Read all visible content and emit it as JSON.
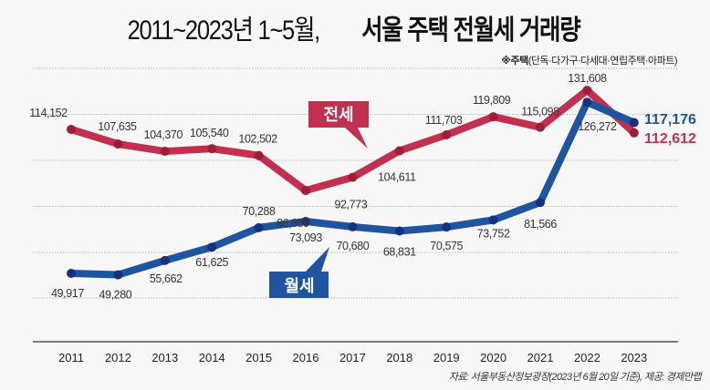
{
  "title_part1": "2011~2023년 1~5월,",
  "title_part2": "서울 주택 전월세 거래량",
  "note_prefix": "※주택",
  "note_detail": "(단독·다가구·다세대·연립주택·아파트)",
  "source": "자료: 서울부동산정보광장(2023년 6월 20일 기준), 제공: 경제만랩",
  "colors": {
    "jeonse": "#c3304f",
    "wolse": "#1f54a0",
    "jeonse_dot": "#9e1d3b",
    "wolse_dot": "#1b2f7f"
  },
  "chart_data": {
    "type": "line",
    "title": "2011~2023년 1~5월, 서울 주택 전월세 거래량",
    "xlabel": "",
    "ylabel": "",
    "x": [
      "2011",
      "2012",
      "2013",
      "2014",
      "2015",
      "2016",
      "2017",
      "2018",
      "2019",
      "2020",
      "2021",
      "2022",
      "2023"
    ],
    "series": [
      {
        "name": "전세",
        "values": [
          114152,
          107635,
          104370,
          105540,
          102502,
          86889,
          92773,
          104611,
          111703,
          119809,
          115098,
          131608,
          112612
        ],
        "labels": [
          "114,152",
          "107,635",
          "104,370",
          "105,540",
          "102,502",
          "86,889",
          "92,773",
          "104,611",
          "111,703",
          "119,809",
          "115,098",
          "131,608",
          "112,612"
        ]
      },
      {
        "name": "월세",
        "values": [
          49917,
          49280,
          55662,
          61625,
          70288,
          73093,
          70680,
          68831,
          70575,
          73752,
          81566,
          126272,
          117176
        ],
        "labels": [
          "49,917",
          "49,280",
          "55,662",
          "61,625",
          "70,288",
          "73,093",
          "70,680",
          "68,831",
          "70,575",
          "73,752",
          "81,566",
          "126,272",
          "117,176"
        ]
      }
    ],
    "legend": {
      "jeonse_tag": "전세",
      "wolse_tag": "월세",
      "placement": "callouts"
    },
    "grid": true,
    "ylim": [
      28000,
      134000
    ]
  }
}
